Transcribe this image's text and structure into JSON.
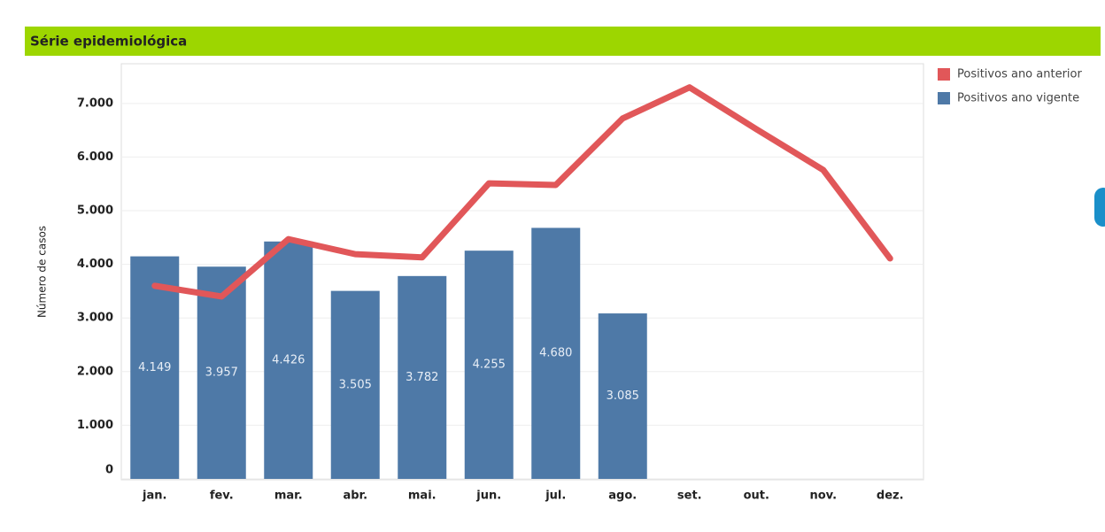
{
  "chart_data": {
    "type": "bar_line",
    "title": "Série epidemiológica",
    "y_label": "Número de casos",
    "categories": [
      "jan.",
      "fev.",
      "mar.",
      "abr.",
      "mai.",
      "jun.",
      "jul.",
      "ago.",
      "set.",
      "out.",
      "nov.",
      "dez."
    ],
    "series": [
      {
        "name": "Positivos ano anterior",
        "color": "#e15759",
        "kind": "line",
        "values": [
          3600,
          3400,
          4470,
          4190,
          4130,
          5510,
          5480,
          6720,
          7300,
          6520,
          5760,
          4110
        ]
      },
      {
        "name": "Positivos ano vigente",
        "color": "#4e79a7",
        "kind": "bar",
        "values": [
          4149,
          3957,
          4426,
          3505,
          3782,
          4255,
          4680,
          3085,
          null,
          null,
          null,
          null
        ],
        "value_labels": [
          "4.149",
          "3.957",
          "4.426",
          "3.505",
          "3.782",
          "4.255",
          "4.680",
          "3.085",
          null,
          null,
          null,
          null
        ]
      }
    ],
    "ylim": [
      0,
      7740
    ],
    "yticks": [
      0,
      {
        "value": 1000,
        "label": "1.000"
      },
      {
        "value": 2000,
        "label": "2.000"
      },
      {
        "value": 3000,
        "label": "3.000"
      },
      {
        "value": 4000,
        "label": "4.000"
      },
      {
        "value": 5000,
        "label": "5.000"
      },
      {
        "value": 6000,
        "label": "6.000"
      },
      {
        "value": 7000,
        "label": "7.000"
      }
    ],
    "grid": true,
    "legend": "right"
  }
}
